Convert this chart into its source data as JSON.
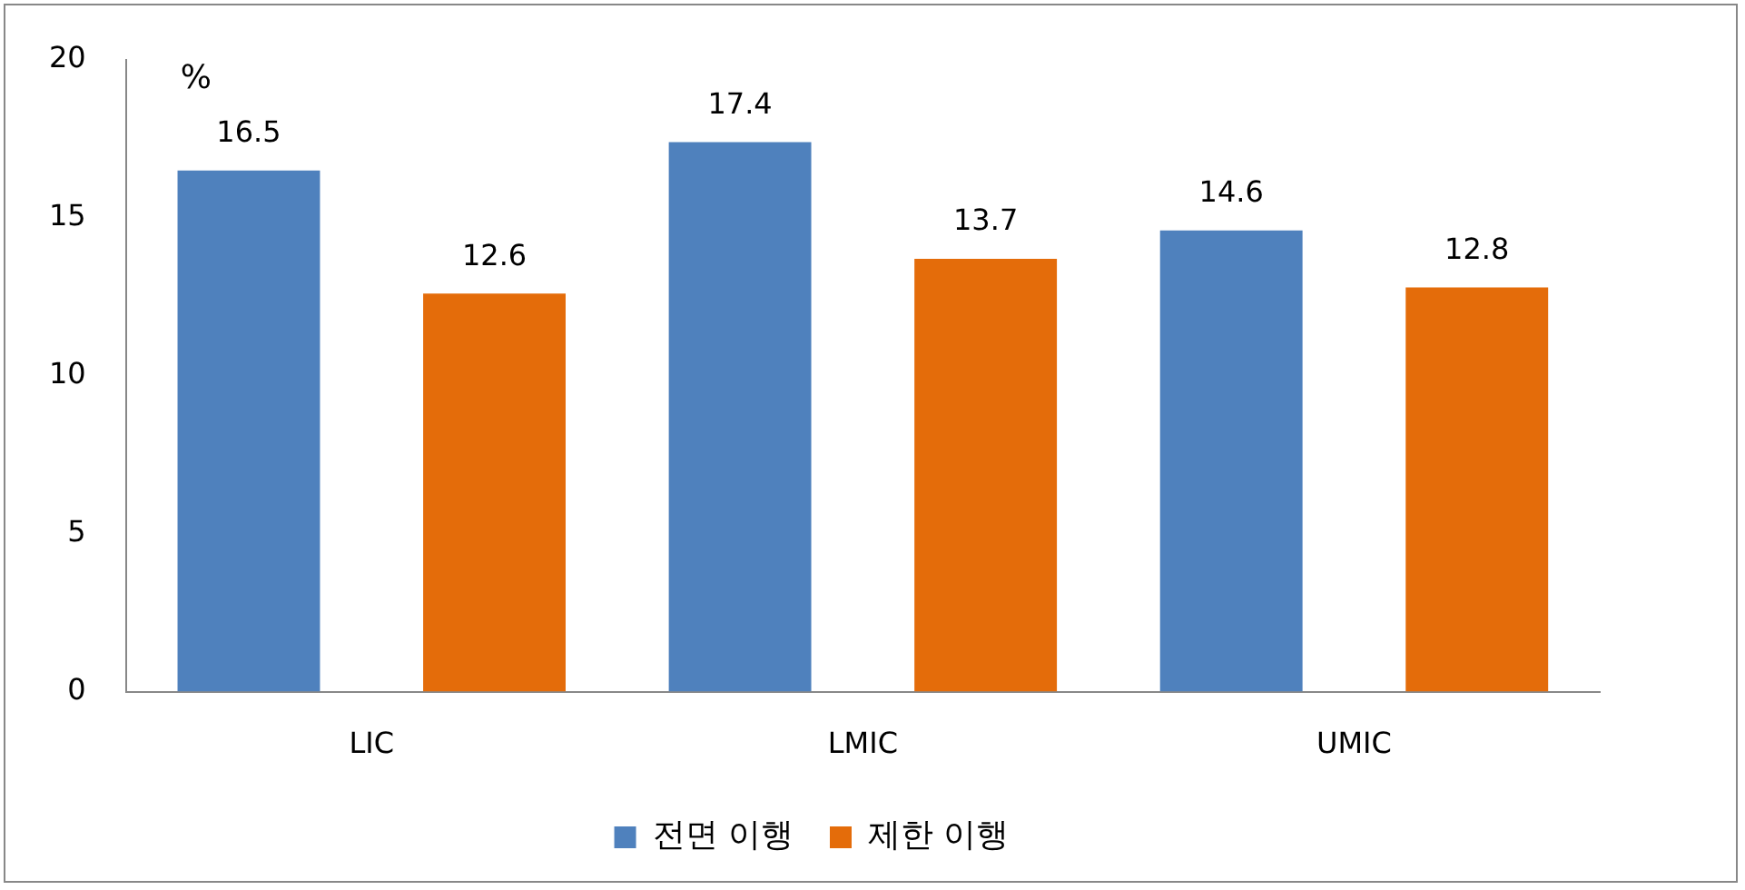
{
  "chart_data": {
    "type": "bar",
    "ylabel": "%",
    "categories": [
      "LIC",
      "LMIC",
      "UMIC"
    ],
    "series": [
      {
        "name": "전면 이행",
        "color": "#4f81bd",
        "values": [
          16.5,
          17.4,
          14.6
        ]
      },
      {
        "name": "제한 이행",
        "color": "#e46c0a",
        "values": [
          12.6,
          13.7,
          12.8
        ]
      }
    ],
    "ylim": [
      0,
      20
    ],
    "yticks": [
      0,
      5,
      10,
      15,
      20
    ],
    "grid": false,
    "legend": "bottom",
    "data_labels": true
  }
}
